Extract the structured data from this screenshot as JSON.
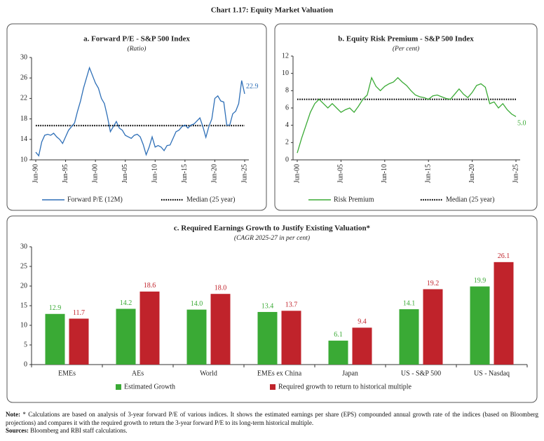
{
  "header": {
    "title": "Chart 1.17: Equity Market Valuation"
  },
  "chart_data": [
    {
      "type": "line",
      "title": "a. Forward P/E - S&P 500 Index",
      "subtitle": "(Ratio)",
      "categories": [
        "Jun-90",
        null,
        null,
        null,
        null,
        null,
        null,
        null,
        null,
        null,
        "Jun-95",
        null,
        null,
        null,
        null,
        null,
        null,
        null,
        null,
        null,
        "Jun-00",
        null,
        null,
        null,
        null,
        null,
        null,
        null,
        null,
        null,
        "Jun-05",
        null,
        null,
        null,
        null,
        null,
        null,
        null,
        null,
        null,
        "Jun-10",
        null,
        null,
        null,
        null,
        null,
        null,
        null,
        null,
        null,
        "Jun-15",
        null,
        null,
        null,
        null,
        null,
        null,
        null,
        null,
        null,
        "Jun-20",
        null,
        null,
        null,
        null,
        null,
        null,
        null,
        null,
        null,
        "Jun-25"
      ],
      "series": [
        {
          "name": "Forward P/E (12M)",
          "color": "#2e6fb7",
          "end_label": "22.9",
          "values": [
            11.5,
            10.8,
            13.5,
            14.8,
            15.0,
            14.8,
            15.2,
            14.5,
            14.0,
            13.2,
            14.5,
            15.8,
            16.5,
            17.2,
            19.5,
            21.5,
            24.0,
            26.0,
            28.0,
            26.5,
            25.0,
            24.0,
            22.0,
            21.0,
            18.5,
            15.5,
            16.5,
            17.5,
            16.2,
            15.8,
            14.8,
            14.5,
            14.2,
            14.8,
            15.0,
            14.5,
            13.0,
            11.0,
            12.5,
            14.5,
            12.5,
            12.8,
            12.5,
            11.8,
            12.8,
            12.9,
            14.2,
            15.5,
            15.8,
            16.5,
            16.8,
            16.2,
            16.8,
            17.0,
            17.6,
            18.2,
            16.5,
            14.4,
            16.5,
            18.0,
            22.0,
            22.5,
            21.5,
            21.3,
            16.8,
            16.8,
            19.0,
            19.5,
            21.0,
            25.5,
            22.9
          ]
        }
      ],
      "median": {
        "name": "Median (25 year)",
        "value": 16.7,
        "color": "#000000"
      },
      "ylim": [
        10,
        30
      ],
      "yticks": [
        10,
        14,
        18,
        22,
        26,
        30
      ]
    },
    {
      "type": "line",
      "title": "b. Equity Risk Premium - S&P 500 Index",
      "subtitle": "(Per cent)",
      "categories": [
        "Jun-00",
        null,
        null,
        null,
        null,
        null,
        null,
        null,
        null,
        null,
        "Jun-05",
        null,
        null,
        null,
        null,
        null,
        null,
        null,
        null,
        null,
        "Jun-10",
        null,
        null,
        null,
        null,
        null,
        null,
        null,
        null,
        null,
        "Jun-15",
        null,
        null,
        null,
        null,
        null,
        null,
        null,
        null,
        null,
        "Jun-20",
        null,
        null,
        null,
        null,
        null,
        null,
        null,
        null,
        null,
        "Jun-25"
      ],
      "series": [
        {
          "name": "Risk Premium",
          "color": "#3aaa35",
          "end_label": "5.0",
          "values": [
            0.8,
            2.5,
            4.0,
            5.5,
            6.5,
            7.0,
            6.5,
            6.0,
            6.5,
            6.0,
            5.5,
            5.8,
            6.0,
            5.5,
            6.2,
            7.0,
            7.5,
            9.5,
            8.5,
            8.0,
            8.5,
            8.8,
            9.0,
            9.5,
            9.0,
            8.6,
            8.0,
            7.5,
            7.3,
            7.2,
            7.0,
            7.4,
            7.5,
            7.3,
            7.1,
            7.0,
            7.6,
            8.2,
            7.6,
            7.2,
            7.8,
            8.6,
            8.8,
            8.4,
            6.5,
            6.7,
            6.0,
            6.5,
            5.8,
            5.3,
            5.0
          ]
        }
      ],
      "median": {
        "name": "Median (25 year)",
        "value": 7.0,
        "color": "#000000"
      },
      "ylim": [
        0,
        12
      ],
      "yticks": [
        0,
        2,
        4,
        6,
        8,
        10,
        12
      ]
    },
    {
      "type": "bar",
      "title": "c. Required Earnings Growth to Justify Existing Valuation*",
      "subtitle": "(CAGR 2025-27 in per cent)",
      "categories": [
        "EMEs",
        "AEs",
        "World",
        "EMEs ex China",
        "Japan",
        "US - S&P 500",
        "US - Nasdaq"
      ],
      "series": [
        {
          "name": "Estimated Growth",
          "color": "#3aaa35",
          "label_color": "#3aaa35",
          "values": [
            12.9,
            14.2,
            14,
            13.4,
            6.1,
            14.1,
            19.9
          ],
          "value_labels": [
            "12.9",
            "14.2",
            "14.0",
            "13.4",
            "6.1",
            "14.1",
            "19.9"
          ]
        },
        {
          "name": "Required growth to return to historical multiple",
          "color": "#c0232b",
          "label_color": "#c0232b",
          "values": [
            11.7,
            18.6,
            18,
            13.7,
            9.4,
            19.2,
            26.1
          ],
          "value_labels": [
            "11.7",
            "18.6",
            "18.0",
            "13.7",
            "9.4",
            "19.2",
            "26.1"
          ]
        }
      ],
      "ylim": [
        0,
        30
      ],
      "yticks": [
        0,
        5,
        10,
        15,
        20,
        25,
        30
      ]
    }
  ],
  "notes": {
    "note_label": "Note:",
    "note_text": "* Calculations are based on analysis of 3-year forward P/E of various indices. It shows the estimated earnings per share (EPS) compounded annual growth rate of the indices (based on Bloomberg projections) and compares it with the required growth to return the 3-year forward P/E to its long-term historical multiple.",
    "sources_label": "Sources:",
    "sources_text": "Bloomberg and RBI staff calculations."
  }
}
